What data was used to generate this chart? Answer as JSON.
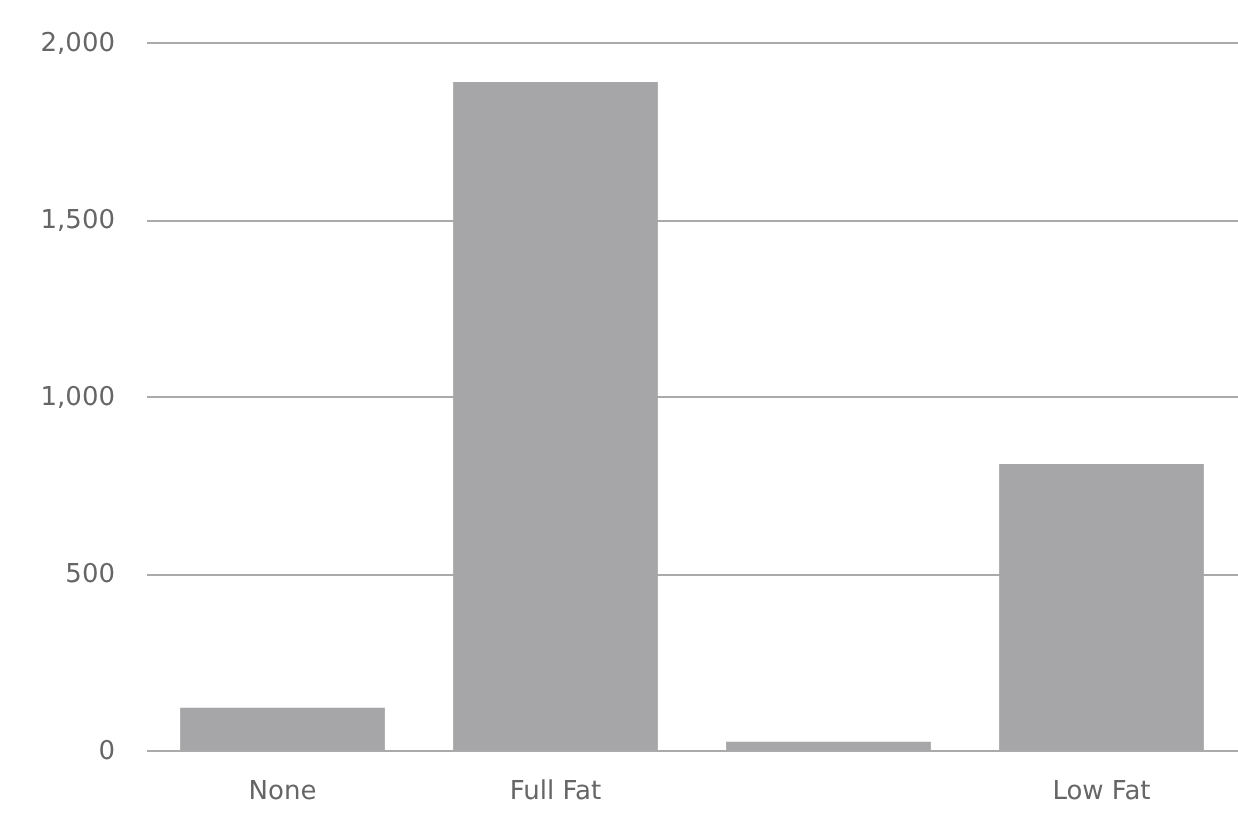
{
  "chart_data": {
    "type": "bar",
    "categories": [
      "None",
      "Full Fat",
      null,
      "Low Fat"
    ],
    "values": [
      119,
      1887,
      23,
      808
    ],
    "color": "#a6a6a9",
    "ylim": [
      0,
      2000
    ],
    "yticks": [
      0,
      {
        "value": 500,
        "label": "500"
      },
      {
        "value": 1000,
        "label": "1,000"
      },
      {
        "value": 1500,
        "label": "1,500"
      },
      {
        "value": 2000,
        "label": "2,000"
      }
    ],
    "grid": "y"
  }
}
